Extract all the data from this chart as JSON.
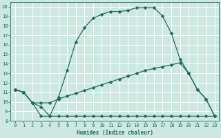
{
  "xlabel": "Humidex (Indice chaleur)",
  "bg_color": "#cde8e1",
  "grid_color": "#ffffff",
  "line_color": "#1e6b5a",
  "ylim": [
    8,
    20.5
  ],
  "xlim": [
    -0.5,
    23.5
  ],
  "yticks": [
    8,
    9,
    10,
    11,
    12,
    13,
    14,
    15,
    16,
    17,
    18,
    19,
    20
  ],
  "xticks": [
    0,
    1,
    2,
    3,
    4,
    5,
    6,
    7,
    8,
    9,
    10,
    11,
    12,
    13,
    14,
    15,
    16,
    17,
    18,
    19,
    20,
    21,
    22,
    23
  ],
  "line1_x": [
    0,
    1,
    2,
    3,
    4,
    5,
    6,
    7,
    8,
    9,
    10,
    11,
    12,
    13,
    14,
    15,
    16,
    17,
    18,
    19,
    20,
    21,
    22,
    23
  ],
  "line1_y": [
    11.3,
    11.0,
    9.9,
    9.5,
    8.5,
    10.5,
    13.3,
    16.3,
    17.8,
    18.8,
    19.2,
    19.5,
    19.5,
    19.6,
    19.9,
    19.9,
    19.9,
    19.0,
    17.2,
    14.5,
    13.0,
    11.3,
    10.3,
    8.5
  ],
  "line2_x": [
    0,
    1,
    2,
    3,
    4,
    5,
    6,
    7,
    8,
    9,
    10,
    11,
    12,
    13,
    14,
    15,
    16,
    17,
    18,
    19,
    20,
    21,
    22,
    23
  ],
  "line2_y": [
    11.3,
    11.0,
    9.9,
    9.9,
    9.9,
    10.3,
    10.6,
    10.9,
    11.2,
    11.5,
    11.8,
    12.1,
    12.4,
    12.7,
    13.0,
    13.3,
    13.5,
    13.7,
    13.9,
    14.1,
    13.0,
    11.3,
    10.3,
    8.5
  ],
  "line3_x": [
    0,
    1,
    2,
    3,
    4,
    5,
    6,
    7,
    8,
    9,
    10,
    11,
    12,
    13,
    14,
    15,
    16,
    17,
    18,
    19,
    20,
    21,
    22,
    23
  ],
  "line3_y": [
    11.3,
    11.0,
    9.9,
    8.5,
    8.5,
    8.5,
    8.5,
    8.5,
    8.5,
    8.5,
    8.5,
    8.5,
    8.5,
    8.5,
    8.5,
    8.5,
    8.5,
    8.5,
    8.5,
    8.5,
    8.5,
    8.5,
    8.5,
    8.5
  ]
}
